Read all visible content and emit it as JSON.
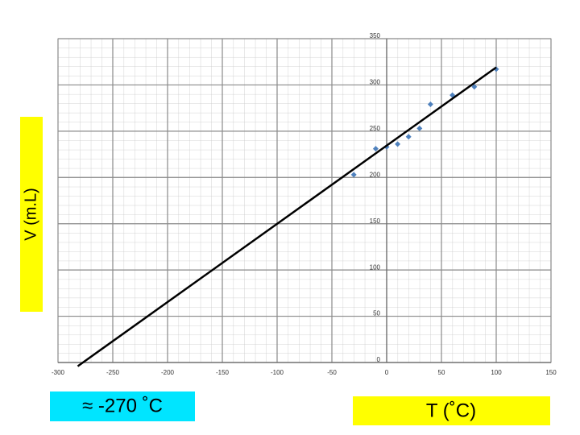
{
  "chart_data": {
    "type": "scatter",
    "x": [
      -30,
      -10,
      0,
      10,
      20,
      30,
      40,
      60,
      80,
      100
    ],
    "values": [
      203,
      231,
      233,
      236,
      244,
      253,
      279,
      289,
      298,
      317
    ],
    "color": "#4f81bd",
    "trendline": {
      "x": [
        -282,
        100
      ],
      "values": [
        -4,
        319
      ],
      "color": "#000000"
    },
    "xlim": [
      -300,
      150
    ],
    "ylim": [
      0,
      350
    ],
    "xticks": [
      -300,
      -250,
      -200,
      -150,
      -100,
      -50,
      0,
      50,
      100,
      150
    ],
    "yticks": [
      0,
      50,
      100,
      150,
      200,
      250,
      300,
      350
    ],
    "grid": true,
    "xlabel": "T (˚C)",
    "ylabel": "V (m.L)",
    "annotation": "≈ -270 ˚C"
  }
}
